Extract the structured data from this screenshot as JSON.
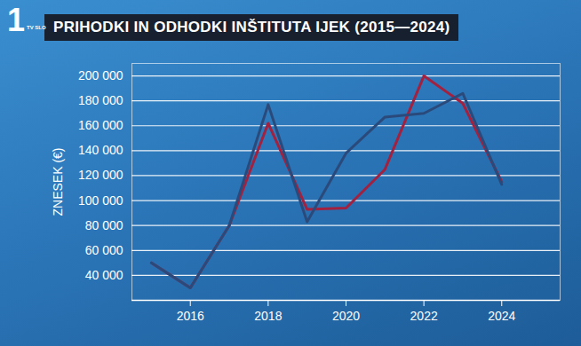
{
  "chart_data": {
    "type": "line",
    "title": "PRIHODKI IN ODHODKI INŠTITUTA IJEK (2015—2024)",
    "y_label": "ZNESEK (€)",
    "annotations": [
      "1",
      "TV SLO"
    ],
    "x": [
      2015,
      2016,
      2017,
      2018,
      2019,
      2020,
      2021,
      2022,
      2023,
      2024
    ],
    "series": [
      {
        "color": "#a3213f",
        "values": [
          50000,
          30000,
          80000,
          162000,
          93000,
          94000,
          125000,
          200000,
          178000,
          115000
        ]
      },
      {
        "color": "#2b4a7c",
        "values": [
          50000,
          30000,
          80000,
          177000,
          83000,
          138000,
          167000,
          170000,
          186000,
          113000
        ]
      }
    ],
    "xlim": [
      2014.5,
      2025.5
    ],
    "xticks": [
      2016,
      2018,
      2020,
      2022,
      2024
    ],
    "ylim": [
      20000,
      210000
    ],
    "yticks": [
      {
        "value": 40000,
        "label": "40 000"
      },
      {
        "value": 60000,
        "label": "60 000"
      },
      {
        "value": 80000,
        "label": "80 000"
      },
      {
        "value": 100000,
        "label": "100 000"
      },
      {
        "value": 120000,
        "label": "120 000"
      },
      {
        "value": 140000,
        "label": "140 000"
      },
      {
        "value": 160000,
        "label": "160 000"
      },
      {
        "value": 180000,
        "label": "180 000"
      },
      {
        "value": 200000,
        "label": "200 000"
      }
    ],
    "grid": true
  }
}
